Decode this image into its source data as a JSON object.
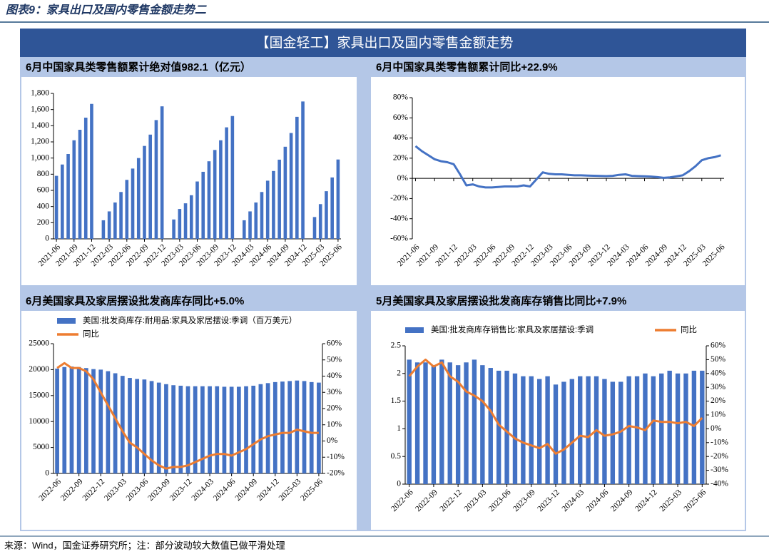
{
  "header": {
    "title": "图表9：家具出口及国内零售金额走势二"
  },
  "banner": "【国金轻工】家具出口及国内零售金额走势",
  "footer": "来源：Wind，国金证券研究所；注：部分波动较大数值已做平滑处理",
  "chart_data": [
    {
      "type": "bar",
      "title": "6月中国家具类零售额累计绝对值982.1（亿元）",
      "color": "#4472c4",
      "categories": [
        "2021-06",
        null,
        null,
        "2021-09",
        null,
        null,
        "2021-12",
        null,
        null,
        "2022-03",
        null,
        null,
        "2022-06",
        null,
        null,
        "2022-09",
        null,
        null,
        "2022-12",
        null,
        null,
        "2023-03",
        null,
        null,
        "2023-06",
        null,
        null,
        "2023-09",
        null,
        null,
        "2023-12",
        null,
        null,
        "2024-03",
        null,
        null,
        "2024-06",
        null,
        null,
        "2024-09",
        null,
        null,
        "2024-12",
        null,
        null,
        "2025-03",
        null,
        null,
        "2025-06"
      ],
      "values": [
        780,
        920,
        1050,
        1220,
        1350,
        1500,
        1670,
        null,
        230,
        340,
        450,
        580,
        730,
        870,
        1000,
        1150,
        1290,
        1470,
        1640,
        null,
        240,
        370,
        440,
        540,
        710,
        830,
        960,
        1100,
        1220,
        1380,
        1520,
        null,
        230,
        340,
        450,
        580,
        720,
        840,
        980,
        1140,
        1310,
        1510,
        1700,
        null,
        270,
        430,
        590,
        760,
        982.1
      ],
      "ylim": [
        0,
        1800
      ],
      "yticks": [
        0,
        200,
        400,
        600,
        800,
        {
          "value": 1000,
          "label": "1,000"
        },
        {
          "value": 1200,
          "label": "1,200"
        },
        {
          "value": 1400,
          "label": "1,400"
        },
        {
          "value": 1600,
          "label": "1,600"
        },
        {
          "value": 1800,
          "label": "1,800"
        }
      ]
    },
    {
      "type": "line",
      "title": "6月中国家具类零售额累计同比+22.9%",
      "color": "#4472c4",
      "categories": [
        "2021-06",
        null,
        null,
        "2021-09",
        null,
        null,
        "2021-12",
        null,
        null,
        "2022-03",
        null,
        null,
        "2022-06",
        null,
        null,
        "2022-09",
        null,
        null,
        "2022-12",
        null,
        null,
        "2023-03",
        null,
        null,
        "2023-06",
        null,
        null,
        "2023-09",
        null,
        null,
        "2023-12",
        null,
        null,
        "2024-03",
        null,
        null,
        "2024-06",
        null,
        null,
        "2024-09",
        null,
        null,
        "2024-12",
        null,
        null,
        "2025-03",
        null,
        null,
        "2025-06"
      ],
      "values": [
        32,
        27,
        23,
        19,
        17,
        16,
        14,
        4,
        -7,
        -6,
        -8,
        -9,
        -9,
        -8.5,
        -8,
        -8,
        -8,
        -7,
        -8,
        -1,
        6,
        4.5,
        4,
        4,
        3.5,
        3,
        3,
        2.8,
        2.6,
        2.4,
        2.2,
        2.5,
        3.5,
        4,
        2.5,
        2.2,
        2,
        1.8,
        1.2,
        0.5,
        1,
        2,
        3,
        7,
        12,
        18,
        20,
        21,
        22.9
      ],
      "ylim": [
        -60,
        80
      ],
      "yticks": [
        {
          "value": -60,
          "label": "-60%"
        },
        {
          "value": -40,
          "label": "-40%"
        },
        {
          "value": -20,
          "label": "-20%"
        },
        {
          "value": 0,
          "label": "0%"
        },
        {
          "value": 20,
          "label": "20%"
        },
        {
          "value": 40,
          "label": "40%"
        },
        {
          "value": 60,
          "label": "60%"
        },
        {
          "value": 80,
          "label": "80%"
        }
      ]
    },
    {
      "type": "combo",
      "title": "6月美国家具及家居摆设批发商库存同比+5.0%",
      "categories": [
        "2022-06",
        null,
        null,
        "2022-09",
        null,
        null,
        "2022-12",
        null,
        null,
        "2023-03",
        null,
        null,
        "2023-06",
        null,
        null,
        "2023-09",
        null,
        null,
        "2023-12",
        null,
        null,
        "2024-03",
        null,
        null,
        "2024-06",
        null,
        null,
        "2024-09",
        null,
        null,
        "2024-12",
        null,
        null,
        "2025-03",
        null,
        null,
        "2025-06"
      ],
      "series": [
        {
          "name": "美国:批发商库存:耐用品:家具及家居摆设:季调（百万美元）",
          "color": "#4472c4",
          "type": "bar",
          "values": [
            20200,
            20500,
            20600,
            20500,
            20300,
            20100,
            20000,
            19700,
            19300,
            18800,
            18400,
            18200,
            18100,
            17800,
            17500,
            17200,
            17000,
            16900,
            16800,
            16800,
            16800,
            16800,
            16800,
            16700,
            16700,
            16700,
            16800,
            16900,
            17200,
            17400,
            17600,
            17700,
            17800,
            17900,
            17800,
            17600,
            17500
          ]
        },
        {
          "name": "同比",
          "color": "#ed7d31",
          "type": "line",
          "axis": "y2",
          "values": [
            45,
            48,
            45,
            45,
            43,
            38,
            30,
            22,
            14,
            6,
            -1,
            -4,
            -8,
            -12,
            -15,
            -17,
            -16,
            -16,
            -15,
            -13,
            -11,
            -9,
            -8,
            -8,
            -9,
            -7,
            -5,
            -2,
            1,
            3,
            4,
            5,
            5,
            7,
            6,
            5,
            5.0
          ]
        }
      ],
      "ylim": [
        0,
        25000
      ],
      "yticks": [
        0,
        5000,
        10000,
        15000,
        20000,
        25000
      ],
      "y2lim": [
        -20,
        60
      ],
      "y2ticks": [
        {
          "value": -20,
          "label": "-20%"
        },
        {
          "value": -10,
          "label": "-10%"
        },
        {
          "value": 0,
          "label": "0%"
        },
        {
          "value": 10,
          "label": "10%"
        },
        {
          "value": 20,
          "label": "20%"
        },
        {
          "value": 30,
          "label": "30%"
        },
        {
          "value": 40,
          "label": "40%"
        },
        {
          "value": 50,
          "label": "50%"
        },
        {
          "value": 60,
          "label": "60%"
        }
      ]
    },
    {
      "type": "combo",
      "title": "5月美国家具及家居摆设批发商库存销售比同比+7.9%",
      "categories": [
        "2022-06",
        null,
        null,
        "2022-09",
        null,
        null,
        "2022-12",
        null,
        null,
        "2023-03",
        null,
        null,
        "2023-06",
        null,
        null,
        "2023-09",
        null,
        null,
        "2023-12",
        null,
        null,
        "2024-03",
        null,
        null,
        "2024-06",
        null,
        null,
        "2024-09",
        null,
        null,
        "2024-12",
        null,
        null,
        "2025-03",
        null,
        null,
        "2025-06"
      ],
      "series": [
        {
          "name": "美国:批发商库存销售比:家具及家居摆设:季调",
          "color": "#4472c4",
          "type": "bar",
          "values": [
            2.25,
            2.2,
            2.2,
            2.15,
            2.25,
            2.2,
            2.15,
            2.2,
            2.25,
            2.15,
            2.1,
            2.05,
            2.05,
            2.0,
            1.95,
            1.95,
            1.9,
            1.95,
            1.8,
            1.85,
            1.9,
            1.95,
            1.95,
            1.95,
            1.9,
            1.85,
            1.85,
            1.95,
            1.95,
            2.0,
            1.95,
            2.0,
            2.05,
            2.0,
            2.0,
            2.05,
            2.05
          ]
        },
        {
          "name": "同比",
          "color": "#ed7d31",
          "type": "line",
          "axis": "y2",
          "values": [
            38,
            45,
            50,
            45,
            48,
            38,
            34,
            27,
            24,
            20,
            13,
            3,
            -2,
            -7,
            -10,
            -12,
            -14,
            -11,
            -18,
            -15,
            -10,
            -5,
            -6,
            -1,
            -5,
            -4,
            -2,
            2,
            1,
            -1,
            6,
            5,
            5,
            4,
            5,
            2,
            7.9
          ]
        }
      ],
      "ylim": [
        0,
        2.5
      ],
      "yticks": [
        0,
        0.5,
        1,
        1.5,
        2,
        2.5
      ],
      "y2lim": [
        -40,
        60
      ],
      "y2ticks": [
        {
          "value": -40,
          "label": "-40%"
        },
        {
          "value": -30,
          "label": "-30%"
        },
        {
          "value": -20,
          "label": "-20%"
        },
        {
          "value": -10,
          "label": "-10%"
        },
        {
          "value": 0,
          "label": "0%"
        },
        {
          "value": 10,
          "label": "10%"
        },
        {
          "value": 20,
          "label": "20%"
        },
        {
          "value": 30,
          "label": "30%"
        },
        {
          "value": 40,
          "label": "40%"
        },
        {
          "value": 50,
          "label": "50%"
        },
        {
          "value": 60,
          "label": "60%"
        }
      ]
    }
  ]
}
